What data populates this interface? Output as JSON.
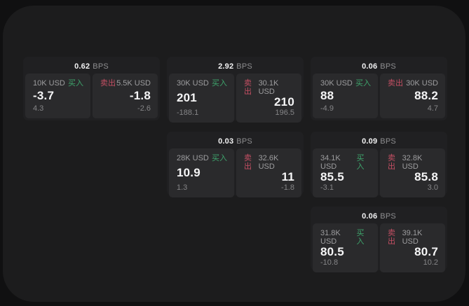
{
  "labels": {
    "bps_unit": "BPS",
    "buy": "买入",
    "sell": "卖出"
  },
  "colors": {
    "buy": "#3ea46c",
    "sell": "#c44f63",
    "surface": "#1c1c1d",
    "card": "#202022",
    "pane": "#2a2a2c"
  },
  "cards": [
    {
      "bps": "0.62",
      "buy": {
        "amount": "10K USD",
        "value": "-3.7",
        "sub": "4.3"
      },
      "sell": {
        "amount": "5.5K USD",
        "value": "-1.8",
        "sub": "-2.6"
      }
    },
    {
      "bps": "2.92",
      "buy": {
        "amount": "30K USD",
        "value": "201",
        "sub": "-188.1"
      },
      "sell": {
        "amount": "30.1K USD",
        "value": "210",
        "sub": "196.5"
      }
    },
    {
      "bps": "0.06",
      "buy": {
        "amount": "30K USD",
        "value": "88",
        "sub": "-4.9"
      },
      "sell": {
        "amount": "30K USD",
        "value": "88.2",
        "sub": "4.7"
      }
    },
    {
      "bps": "0.03",
      "buy": {
        "amount": "28K USD",
        "value": "10.9",
        "sub": "1.3"
      },
      "sell": {
        "amount": "32.6K USD",
        "value": "11",
        "sub": "-1.8"
      }
    },
    {
      "bps": "0.09",
      "buy": {
        "amount": "34.1K USD",
        "value": "85.5",
        "sub": "-3.1"
      },
      "sell": {
        "amount": "32.8K USD",
        "value": "85.8",
        "sub": "3.0"
      }
    },
    {
      "bps": "0.06",
      "buy": {
        "amount": "31.8K USD",
        "value": "80.5",
        "sub": "-10.8"
      },
      "sell": {
        "amount": "39.1K USD",
        "value": "80.7",
        "sub": "10.2"
      }
    }
  ]
}
